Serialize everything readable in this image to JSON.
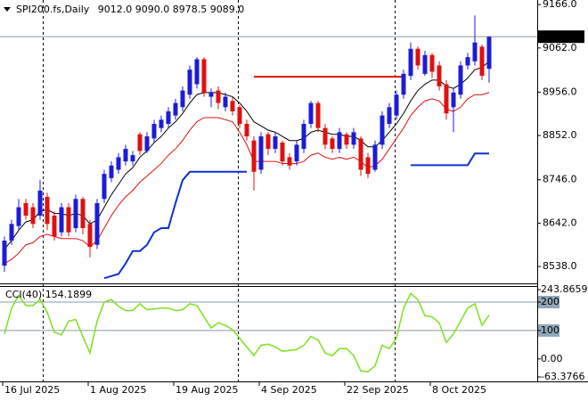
{
  "chart_data": {
    "type": "candlestick",
    "symbol": "SPI200.fs,Daily",
    "info_values": [
      {
        "value": 9012,
        "label": "9012.0"
      },
      {
        "value": 9090,
        "label": "9090.0"
      },
      {
        "value": 8978.5,
        "label": "8978.5"
      },
      {
        "value": 9089,
        "label": "9089.0"
      }
    ],
    "categories": [
      "16 Jul 2025",
      null,
      null,
      null,
      null,
      null,
      null,
      null,
      null,
      null,
      null,
      null,
      "1 Aug 2025",
      null,
      null,
      null,
      null,
      null,
      null,
      null,
      null,
      null,
      null,
      null,
      "19 Aug 2025",
      null,
      null,
      null,
      null,
      null,
      null,
      null,
      null,
      null,
      null,
      null,
      "4 Sep 2025",
      null,
      null,
      null,
      null,
      null,
      null,
      null,
      null,
      null,
      null,
      null,
      "22 Sep 2025",
      null,
      null,
      null,
      null,
      null,
      null,
      null,
      null,
      null,
      null,
      null,
      "8 Oct 2025",
      null,
      null,
      null,
      null,
      null,
      null,
      null,
      null
    ],
    "open": [
      8540,
      8600,
      8635,
      8690,
      8680,
      8660,
      8705,
      8660,
      8620,
      8680,
      8630,
      8700,
      8640,
      8590,
      8700,
      8750,
      8770,
      8790,
      8790,
      8855,
      8815,
      8845,
      8870,
      8880,
      8900,
      8920,
      8950,
      8975,
      9035,
      8945,
      8960,
      8920,
      8935,
      8920,
      8880,
      8840,
      8770,
      8855,
      8820,
      8835,
      8800,
      8790,
      8820,
      8880,
      8930,
      8870,
      8845,
      8820,
      8855,
      8830,
      8845,
      8800,
      8770,
      8830,
      8880,
      8900,
      8950,
      8995,
      9060,
      9000,
      9045,
      9020,
      8975,
      8920,
      8950,
      9020,
      9030,
      9065,
      9012
    ],
    "high": [
      8610,
      8650,
      8700,
      8700,
      8690,
      8746,
      8715,
      8670,
      8690,
      8690,
      8710,
      8705,
      8650,
      8700,
      8770,
      8790,
      8810,
      8830,
      8815,
      8860,
      8860,
      8890,
      8900,
      8920,
      8940,
      8970,
      9020,
      9040,
      9040,
      8965,
      8970,
      8955,
      8945,
      8925,
      8890,
      8850,
      8860,
      8860,
      8860,
      8840,
      8810,
      8840,
      8890,
      8935,
      8935,
      8880,
      8850,
      8870,
      8860,
      8870,
      8850,
      8810,
      8840,
      8910,
      8930,
      8960,
      9010,
      9075,
      9065,
      9055,
      9050,
      9030,
      8985,
      8965,
      9030,
      9050,
      9140,
      9070,
      9090
    ],
    "low": [
      8525,
      8590,
      8625,
      8650,
      8630,
      8650,
      8625,
      8600,
      8610,
      8610,
      8620,
      8615,
      8560,
      8580,
      8690,
      8740,
      8760,
      8780,
      8780,
      8805,
      8810,
      8835,
      8860,
      8870,
      8890,
      8910,
      8940,
      8965,
      8945,
      8920,
      8915,
      8910,
      8900,
      8870,
      8840,
      8720,
      8760,
      8805,
      8810,
      8780,
      8770,
      8780,
      8810,
      8870,
      8860,
      8820,
      8810,
      8810,
      8820,
      8820,
      8755,
      8750,
      8765,
      8820,
      8870,
      8890,
      8940,
      8985,
      9010,
      8995,
      8990,
      8960,
      8890,
      8860,
      8940,
      9010,
      9020,
      8985,
      8978.5
    ],
    "close": [
      8600,
      8640,
      8680,
      8660,
      8640,
      8720,
      8640,
      8610,
      8680,
      8620,
      8700,
      8630,
      8585,
      8690,
      8760,
      8780,
      8800,
      8820,
      8805,
      8815,
      8850,
      8880,
      8890,
      8910,
      8930,
      8960,
      9010,
      9035,
      8955,
      8955,
      8930,
      8945,
      8910,
      8880,
      8850,
      8765,
      8850,
      8820,
      8850,
      8790,
      8780,
      8830,
      8880,
      8930,
      8870,
      8830,
      8820,
      8860,
      8830,
      8860,
      8770,
      8760,
      8830,
      8900,
      8920,
      8950,
      9000,
      9060,
      9020,
      9045,
      9005,
      8970,
      8905,
      8955,
      9020,
      9040,
      9075,
      8995,
      9089
    ],
    "up_color": "#1c1cd6",
    "down_color": "#e01010",
    "series": [
      {
        "color": "#000000",
        "width": 1,
        "values": [
          8580,
          8600,
          8625,
          8645,
          8650,
          8670,
          8675,
          8665,
          8665,
          8660,
          8665,
          8660,
          8640,
          8650,
          8680,
          8710,
          8735,
          8760,
          8775,
          8800,
          8815,
          8835,
          8850,
          8870,
          8885,
          8905,
          8930,
          8950,
          8955,
          8955,
          8955,
          8950,
          8945,
          8930,
          8910,
          8885,
          8875,
          8865,
          8860,
          8850,
          8840,
          8840,
          8845,
          8860,
          8865,
          8860,
          8855,
          8855,
          8850,
          8850,
          8840,
          8825,
          8825,
          8840,
          8860,
          8880,
          8905,
          8935,
          8960,
          8975,
          8985,
          8985,
          8970,
          8965,
          8975,
          8990,
          9010,
          9015,
          9030
        ]
      },
      {
        "color": "#e01010",
        "width": 1,
        "values": [
          8545,
          8555,
          8570,
          8590,
          8595,
          8610,
          8615,
          8610,
          8605,
          8605,
          8605,
          8600,
          8585,
          8600,
          8630,
          8660,
          8685,
          8705,
          8720,
          8740,
          8755,
          8770,
          8785,
          8805,
          8820,
          8840,
          8865,
          8885,
          8895,
          8895,
          8895,
          8890,
          8885,
          8860,
          8830,
          8790,
          8790,
          8790,
          8790,
          8785,
          8785,
          8785,
          8790,
          8805,
          8810,
          8800,
          8795,
          8800,
          8795,
          8800,
          8790,
          8775,
          8780,
          8795,
          8820,
          8845,
          8870,
          8900,
          8920,
          8935,
          8940,
          8935,
          8915,
          8910,
          8920,
          8940,
          8950,
          8950,
          8955
        ]
      },
      {
        "color": "#e01010",
        "width": 2,
        "values": [
          null,
          null,
          null,
          null,
          null,
          null,
          null,
          null,
          null,
          null,
          null,
          null,
          null,
          null,
          null,
          null,
          null,
          null,
          null,
          null,
          null,
          null,
          null,
          null,
          null,
          null,
          null,
          null,
          null,
          null,
          null,
          null,
          null,
          null,
          null,
          8993,
          8993,
          8993,
          8993,
          8993,
          8993,
          8993,
          8993,
          8993,
          8993,
          8993,
          8993,
          8993,
          8993,
          8993,
          8993,
          8993,
          8993,
          8993,
          8993,
          8993,
          8993,
          null,
          null,
          null,
          null,
          null,
          null,
          null,
          null,
          null,
          null,
          null,
          null
        ]
      },
      {
        "color": "#1030d0",
        "width": 2,
        "values": [
          null,
          null,
          null,
          null,
          null,
          null,
          null,
          null,
          null,
          null,
          null,
          null,
          null,
          null,
          8510,
          8515,
          8520,
          8545,
          8575,
          8575,
          8590,
          8620,
          8630,
          8630,
          8690,
          8745,
          8765,
          8765,
          8765,
          8765,
          8765,
          8765,
          8765,
          8765,
          8765,
          null,
          null,
          null,
          null,
          null,
          null,
          null,
          null,
          null,
          null,
          null,
          null,
          null,
          null,
          null,
          null,
          null,
          null,
          null,
          null,
          null,
          null,
          null,
          null,
          null,
          null,
          null,
          null,
          null,
          null,
          null,
          null,
          null,
          null
        ]
      },
      {
        "color": "#1030d0",
        "width": 2,
        "values": [
          null,
          null,
          null,
          null,
          null,
          null,
          null,
          null,
          null,
          null,
          null,
          null,
          null,
          null,
          null,
          null,
          null,
          null,
          null,
          null,
          null,
          null,
          null,
          null,
          null,
          null,
          null,
          null,
          null,
          null,
          null,
          null,
          null,
          null,
          null,
          null,
          null,
          null,
          null,
          null,
          null,
          null,
          null,
          null,
          null,
          null,
          null,
          null,
          null,
          null,
          null,
          null,
          null,
          null,
          null,
          null,
          null,
          8781,
          8781,
          8781,
          8781,
          8781,
          8781,
          8781,
          8781,
          8781,
          8809,
          8809,
          8809
        ]
      }
    ],
    "ylim": [
      8497.5,
      9177
    ],
    "yticks": [
      {
        "value": 9166,
        "label": "9166.0"
      },
      {
        "value": 9062,
        "label": "9062.0"
      },
      {
        "value": 8956,
        "label": "8956.0"
      },
      {
        "value": 8852,
        "label": "8852.0"
      },
      {
        "value": 8746,
        "label": "8746.0"
      },
      {
        "value": 8642,
        "label": "8642.0"
      },
      {
        "value": 8538,
        "label": "8538.0"
      }
    ],
    "price_label": {
      "value": 9089,
      "label": "9089.0"
    },
    "cci": {
      "name": "CCI(40)",
      "current": 154.1899,
      "color": "#7ee020",
      "values": [
        88,
        179,
        224,
        188,
        188,
        209,
        164,
        94,
        85,
        133,
        139,
        79,
        21,
        133,
        200,
        209,
        185,
        170,
        170,
        194,
        173,
        176,
        179,
        179,
        170,
        173,
        194,
        188,
        148,
        109,
        127,
        118,
        103,
        73,
        42,
        12,
        48,
        52,
        42,
        27,
        30,
        33,
        48,
        79,
        67,
        21,
        12,
        36,
        36,
        12,
        -42,
        -45,
        -24,
        48,
        36,
        73,
        179,
        230,
        209,
        152,
        148,
        127,
        58,
        88,
        133,
        179,
        194,
        118,
        154.1899
      ],
      "ylim": [
        -63.3766,
        243.8659
      ],
      "yticks": [
        243.8659,
        200,
        100,
        {
          "value": 0,
          "label": "0.00"
        },
        -63.3766
      ],
      "levels": [
        200,
        100
      ]
    }
  }
}
